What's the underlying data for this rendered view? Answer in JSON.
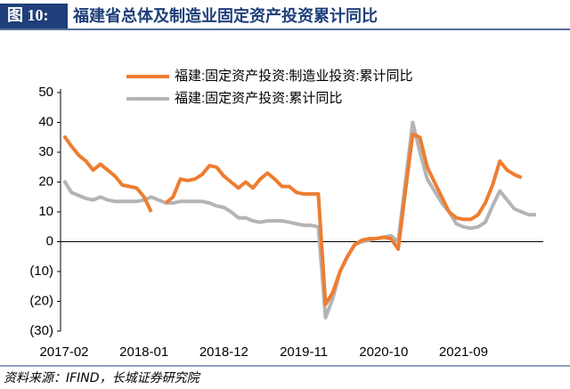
{
  "header": {
    "figure": "图 10:",
    "title": "福建省总体及制造业固定资产投资累计同比"
  },
  "source": "资料来源：IFIND，长城证券研究院",
  "chart_data": {
    "type": "line",
    "categories": [
      "2017-02",
      null,
      null,
      null,
      null,
      null,
      null,
      null,
      null,
      null,
      null,
      "2018-01",
      null,
      null,
      null,
      null,
      null,
      null,
      null,
      null,
      null,
      null,
      "2018-12",
      null,
      null,
      null,
      null,
      null,
      null,
      null,
      null,
      null,
      null,
      "2019-11",
      null,
      null,
      null,
      null,
      null,
      null,
      null,
      null,
      null,
      null,
      "2020-10",
      null,
      null,
      null,
      null,
      null,
      null,
      null,
      null,
      null,
      null,
      "2021-09",
      null,
      null,
      null,
      null,
      null,
      null,
      null,
      null,
      null,
      null
    ],
    "series": [
      {
        "name": "福建:固定资产投资:制造业投资:累计同比",
        "color": "#ed7d31",
        "values": [
          35.5,
          32,
          29,
          27,
          24,
          26,
          24,
          22,
          19,
          18.5,
          18,
          15,
          10,
          null,
          13,
          15,
          21,
          20.5,
          21,
          22.5,
          25.5,
          25,
          22,
          20,
          18,
          20,
          18,
          21,
          23,
          21,
          18.5,
          18.5,
          16.5,
          16,
          16,
          16,
          -21,
          -17,
          -10,
          -5,
          -1,
          0.5,
          1,
          1,
          1.5,
          1,
          -2.5,
          17,
          36,
          35,
          25,
          20,
          15,
          10,
          8,
          7.5,
          7.5,
          9,
          13,
          19,
          27,
          24,
          22.5,
          21.5,
          null,
          null
        ]
      },
      {
        "name": "福建:固定资产投资:累计同比",
        "color": "#b4b4b4",
        "values": [
          20.5,
          16.5,
          15.5,
          14.5,
          14,
          15,
          14,
          13.5,
          13.5,
          13.5,
          13.5,
          14,
          15,
          14,
          13,
          13,
          13.5,
          13.5,
          13.5,
          13.5,
          13,
          12,
          11.5,
          10,
          8,
          8,
          7,
          6.5,
          7,
          7,
          7,
          6.5,
          6,
          5.5,
          5.5,
          5,
          -25.5,
          -19,
          -10,
          -5,
          -1,
          0,
          0.5,
          1,
          1.5,
          2,
          0,
          20,
          40,
          30,
          21,
          17,
          13,
          10,
          6,
          5,
          4.5,
          5,
          6.5,
          12,
          17,
          14,
          11,
          10,
          9,
          9
        ]
      }
    ],
    "ylim": [
      -30,
      50
    ],
    "yticks": [
      {
        "value": -30,
        "label": "(30)"
      },
      {
        "value": -20,
        "label": "(20)"
      },
      {
        "value": -10,
        "label": "(10)"
      },
      0,
      10,
      20,
      30,
      40,
      50
    ],
    "grid": false,
    "legend": "top"
  }
}
